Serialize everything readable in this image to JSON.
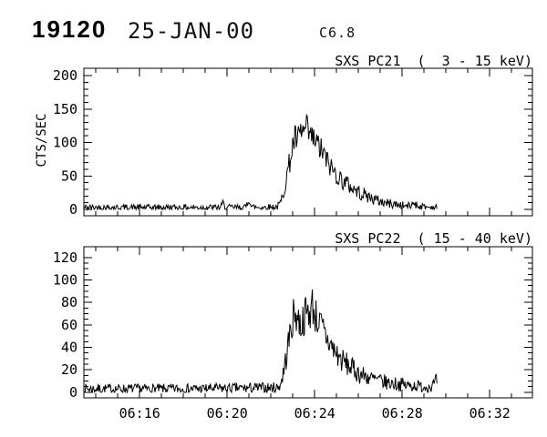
{
  "header": {
    "flare_number": "19120",
    "date": "25-JAN-00",
    "goes_class": "C6.8"
  },
  "chart_data": [
    {
      "type": "line",
      "title": "SXS PC21  (  3 - 15 keV)",
      "series_name": "SXS PC21",
      "energy_band_kev": "3 - 15",
      "ylabel": "CTS/SEC",
      "xlabel": "",
      "xlim": [
        13.45,
        33.95
      ],
      "ylim": [
        -9.5,
        211
      ],
      "yticks": [
        0,
        50,
        100,
        150,
        200
      ],
      "ytick_minor_step": 10,
      "xticks": [
        16,
        20,
        24,
        28,
        32
      ],
      "xticklabels": [
        "06:16",
        "06:20",
        "06:24",
        "06:28",
        "06:32"
      ],
      "xtick_minor_step": 1,
      "show_xticklabels": false,
      "time_axis_note": "minutes after 06:00 UT",
      "data_trange": [
        13.47,
        29.62
      ],
      "cadence_min": 0.0333,
      "envelope": [
        [
          13.47,
          3
        ],
        [
          17.0,
          3
        ],
        [
          19.7,
          3
        ],
        [
          19.8,
          9
        ],
        [
          19.9,
          3
        ],
        [
          20.85,
          3
        ],
        [
          20.95,
          13
        ],
        [
          21.02,
          18
        ],
        [
          21.1,
          4
        ],
        [
          21.5,
          3
        ],
        [
          22.3,
          4
        ],
        [
          22.45,
          10
        ],
        [
          22.6,
          30
        ],
        [
          22.75,
          55
        ],
        [
          22.9,
          78
        ],
        [
          23.0,
          95
        ],
        [
          23.1,
          107
        ],
        [
          23.2,
          100
        ],
        [
          23.3,
          110
        ],
        [
          23.4,
          117
        ],
        [
          23.5,
          113
        ],
        [
          23.6,
          122
        ],
        [
          23.7,
          115
        ],
        [
          23.8,
          108
        ],
        [
          23.9,
          106
        ],
        [
          24.0,
          102
        ],
        [
          24.15,
          96
        ],
        [
          24.3,
          88
        ],
        [
          24.45,
          80
        ],
        [
          24.6,
          70
        ],
        [
          24.8,
          60
        ],
        [
          25.0,
          52
        ],
        [
          25.2,
          45
        ],
        [
          25.4,
          40
        ],
        [
          25.6,
          35
        ],
        [
          25.8,
          30
        ],
        [
          26.0,
          26
        ],
        [
          26.2,
          23
        ],
        [
          26.4,
          20
        ],
        [
          26.6,
          17
        ],
        [
          26.8,
          14
        ],
        [
          27.0,
          12
        ],
        [
          27.2,
          10
        ],
        [
          27.4,
          9
        ],
        [
          27.6,
          8
        ],
        [
          27.8,
          7
        ],
        [
          28.0,
          6
        ],
        [
          28.2,
          5
        ],
        [
          28.4,
          5
        ],
        [
          28.55,
          11
        ],
        [
          28.7,
          5
        ],
        [
          29.0,
          4
        ],
        [
          29.3,
          3
        ],
        [
          29.62,
          3
        ]
      ],
      "noise": {
        "seed": 42,
        "base": 1.5,
        "sqrt_coef": 1.9
      }
    },
    {
      "type": "line",
      "title": "SXS PC22  ( 15 - 40 keV)",
      "series_name": "SXS PC22",
      "energy_band_kev": "15 - 40",
      "ylabel": "",
      "xlabel": "",
      "xlim": [
        13.45,
        33.95
      ],
      "ylim": [
        -5,
        129.6
      ],
      "yticks": [
        0,
        20,
        40,
        60,
        80,
        100,
        120
      ],
      "ytick_minor_step": 5,
      "xticks": [
        16,
        20,
        24,
        28,
        32
      ],
      "xticklabels": [
        "06:16",
        "06:20",
        "06:24",
        "06:28",
        "06:32"
      ],
      "xtick_minor_step": 1,
      "show_xticklabels": true,
      "time_axis_note": "minutes after 06:00 UT",
      "data_trange": [
        13.47,
        29.62
      ],
      "cadence_min": 0.0333,
      "envelope": [
        [
          13.47,
          3
        ],
        [
          18.0,
          3
        ],
        [
          22.3,
          4
        ],
        [
          22.45,
          8
        ],
        [
          22.6,
          20
        ],
        [
          22.75,
          38
        ],
        [
          22.9,
          55
        ],
        [
          23.0,
          65
        ],
        [
          23.1,
          71
        ],
        [
          23.2,
          68
        ],
        [
          23.3,
          62
        ],
        [
          23.4,
          60
        ],
        [
          23.5,
          66
        ],
        [
          23.6,
          70
        ],
        [
          23.7,
          71
        ],
        [
          23.8,
          72
        ],
        [
          23.85,
          74
        ],
        [
          23.9,
          80
        ],
        [
          23.95,
          72
        ],
        [
          24.0,
          70
        ],
        [
          24.15,
          64
        ],
        [
          24.3,
          58
        ],
        [
          24.45,
          52
        ],
        [
          24.6,
          46
        ],
        [
          24.8,
          40
        ],
        [
          25.0,
          34
        ],
        [
          25.2,
          29
        ],
        [
          25.4,
          26
        ],
        [
          25.6,
          23
        ],
        [
          25.8,
          20
        ],
        [
          26.0,
          17
        ],
        [
          26.2,
          15
        ],
        [
          26.4,
          14
        ],
        [
          26.6,
          12
        ],
        [
          26.8,
          11
        ],
        [
          27.0,
          10
        ],
        [
          27.2,
          9
        ],
        [
          27.4,
          8
        ],
        [
          27.6,
          8
        ],
        [
          27.8,
          7
        ],
        [
          28.0,
          7
        ],
        [
          28.2,
          6
        ],
        [
          28.4,
          6
        ],
        [
          28.6,
          6
        ],
        [
          28.8,
          5
        ],
        [
          29.0,
          5
        ],
        [
          29.2,
          5
        ],
        [
          29.4,
          6
        ],
        [
          29.5,
          8
        ],
        [
          29.62,
          11
        ]
      ],
      "noise": {
        "seed": 7,
        "base": 1.2,
        "sqrt_coef": 1.9
      }
    }
  ]
}
